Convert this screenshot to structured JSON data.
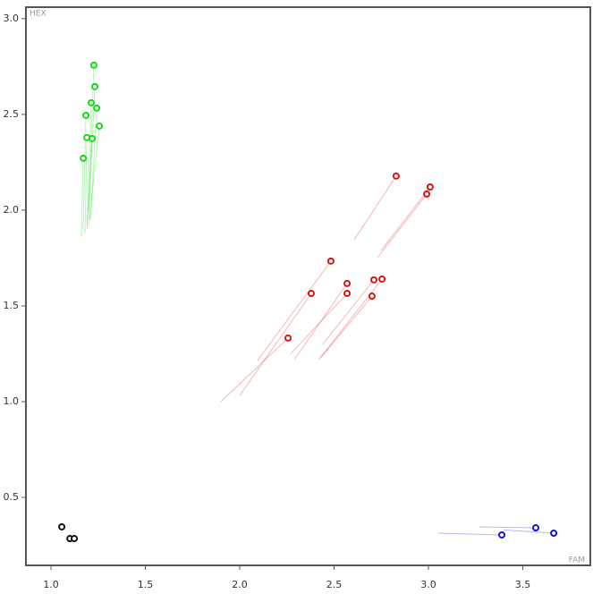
{
  "chart_data": {
    "type": "scatter",
    "x_label": "FAM",
    "y_label": "HEX",
    "xlim": [
      0.867,
      3.858
    ],
    "ylim": [
      0.145,
      3.06
    ],
    "xticks": [
      {
        "value": 1,
        "label": "1.0"
      },
      1.5,
      {
        "value": 2,
        "label": "2.0"
      },
      2.5,
      {
        "value": 3,
        "label": "3.0"
      },
      3.5
    ],
    "yticks": [
      0.5,
      {
        "value": 1,
        "label": "1.0"
      },
      1.5,
      {
        "value": 2,
        "label": "2.0"
      },
      2.5,
      {
        "value": 3,
        "label": "3.0"
      }
    ],
    "series": [
      {
        "color": "#11dd11",
        "x": [
          1.227,
          1.232,
          1.213,
          1.242,
          1.185,
          1.256,
          1.19,
          1.218,
          1.171
        ],
        "y": [
          2.757,
          2.645,
          2.561,
          2.533,
          2.495,
          2.439,
          2.379,
          2.374,
          2.271
        ],
        "trail_x": [
          1.2,
          1.2,
          1.19,
          1.21,
          1.17,
          1.2,
          1.18,
          1.19,
          1.16
        ],
        "trail_y": [
          2.0,
          1.95,
          1.93,
          1.95,
          1.9,
          1.92,
          1.88,
          1.9,
          1.86
        ]
      },
      {
        "color": "#dd1111",
        "x": [
          2.829,
          3.009,
          2.991,
          2.483,
          2.379,
          2.569,
          2.569,
          2.711,
          2.754,
          2.701,
          2.256
        ],
        "y": [
          2.178,
          2.121,
          2.084,
          1.734,
          1.565,
          1.617,
          1.565,
          1.636,
          1.64,
          1.551,
          1.332
        ],
        "trail_x": [
          2.607,
          2.75,
          2.73,
          2.095,
          2.0,
          2.29,
          2.27,
          2.44,
          2.42,
          2.43,
          1.9
        ],
        "trail_y": [
          1.846,
          1.79,
          1.752,
          1.215,
          1.033,
          1.22,
          1.25,
          1.3,
          1.22,
          1.23,
          1.0
        ]
      },
      {
        "color": "#1111dd",
        "x": [
          3.569,
          3.389,
          3.664
        ],
        "y": [
          0.341,
          0.304,
          0.313
        ],
        "trail_x": [
          3.27,
          3.052,
          3.4
        ],
        "trail_y": [
          0.346,
          0.313,
          0.33
        ]
      },
      {
        "color": "#111111",
        "x": [
          1.057,
          1.1,
          1.123
        ],
        "y": [
          0.346,
          0.285,
          0.285
        ],
        "trail_x": [
          1.057,
          1.1,
          1.123
        ],
        "trail_y": [
          0.346,
          0.285,
          0.285
        ]
      }
    ]
  }
}
